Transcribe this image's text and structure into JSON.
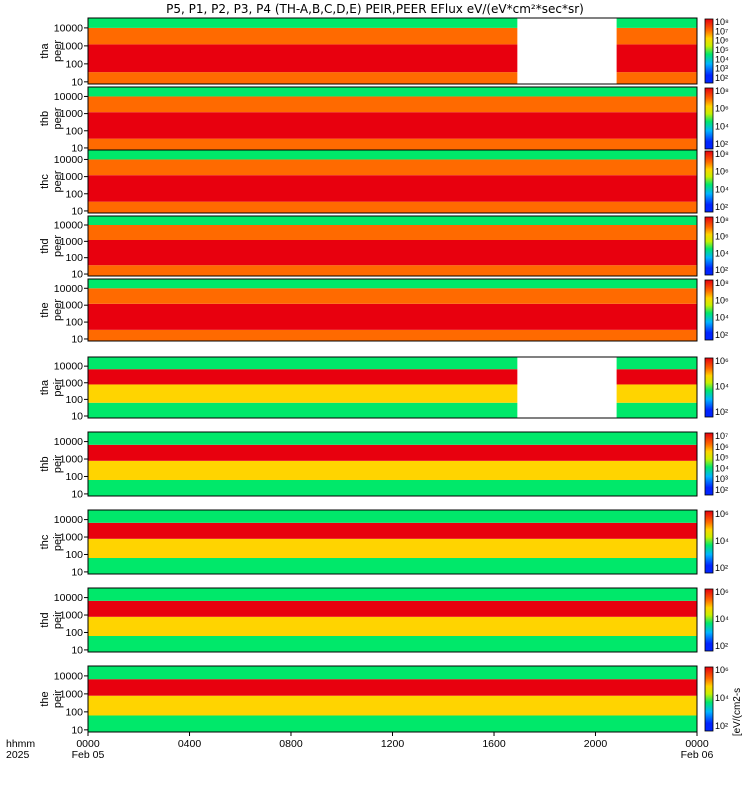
{
  "title": "P5, P1, P2, P3, P4 (TH-A,B,C,D,E) PEIR,PEER EFlux eV/(eV*cm²*sec*sr)",
  "time_axis": {
    "row_labels": [
      "hhmm",
      "2025"
    ],
    "ticks": [
      {
        "label": "0000",
        "sub": "Feb 05",
        "frac": 0.0
      },
      {
        "label": "0400",
        "sub": "",
        "frac": 0.1667
      },
      {
        "label": "0800",
        "sub": "",
        "frac": 0.3333
      },
      {
        "label": "1200",
        "sub": "",
        "frac": 0.5
      },
      {
        "label": "1600",
        "sub": "",
        "frac": 0.6667
      },
      {
        "label": "2000",
        "sub": "",
        "frac": 0.8333
      },
      {
        "label": "0000",
        "sub": "Feb 06",
        "frac": 1.0
      }
    ]
  },
  "colorbar_label": "[eV/(cm2-s",
  "chart_data": {
    "type": "heatmap",
    "x_range_hours": [
      0,
      24
    ],
    "y_axis_log": true,
    "y_ticks": [
      "10000",
      "1000",
      "100",
      "10"
    ],
    "y_tick_values": [
      10000,
      1000,
      100,
      10
    ],
    "panels": [
      {
        "probe": "tha",
        "species": "peer",
        "cbar_ticks": [
          "10⁸",
          "10⁷",
          "10⁶",
          "10⁵",
          "10⁴",
          "10³",
          "10²"
        ],
        "cbar_exp_max": 8,
        "cbar_exp_min": 2,
        "gap": [
          0.705,
          0.868
        ]
      },
      {
        "probe": "thb",
        "species": "peer",
        "cbar_ticks": [
          "10⁸",
          "10⁶",
          "10⁴",
          "10²"
        ],
        "cbar_exp_max": 8,
        "cbar_exp_min": 2
      },
      {
        "probe": "thc",
        "species": "peer",
        "cbar_ticks": [
          "10⁸",
          "10⁶",
          "10⁴",
          "10²"
        ],
        "cbar_exp_max": 8,
        "cbar_exp_min": 2
      },
      {
        "probe": "thd",
        "species": "peer",
        "cbar_ticks": [
          "10⁸",
          "10⁶",
          "10⁴",
          "10²"
        ],
        "cbar_exp_max": 8,
        "cbar_exp_min": 2
      },
      {
        "probe": "the",
        "species": "peer",
        "cbar_ticks": [
          "10⁸",
          "10⁶",
          "10⁴",
          "10²"
        ],
        "cbar_exp_max": 8,
        "cbar_exp_min": 2
      },
      {
        "probe": "tha",
        "species": "peir",
        "cbar_ticks": [
          "10⁶",
          "10⁴",
          "10²"
        ],
        "cbar_exp_max": 6,
        "cbar_exp_min": 2,
        "gap": [
          0.705,
          0.868
        ]
      },
      {
        "probe": "thb",
        "species": "peir",
        "cbar_ticks": [
          "10⁷",
          "10⁶",
          "10⁵",
          "10⁴",
          "10³",
          "10²"
        ],
        "cbar_exp_max": 7,
        "cbar_exp_min": 2
      },
      {
        "probe": "thc",
        "species": "peir",
        "cbar_ticks": [
          "10⁶",
          "10⁴",
          "10²"
        ],
        "cbar_exp_max": 6,
        "cbar_exp_min": 2
      },
      {
        "probe": "thd",
        "species": "peir",
        "cbar_ticks": [
          "10⁶",
          "10⁴",
          "10²"
        ],
        "cbar_exp_max": 6,
        "cbar_exp_min": 2
      },
      {
        "probe": "the",
        "species": "peir",
        "cbar_ticks": [
          "10⁶",
          "10⁴",
          "10²"
        ],
        "cbar_exp_max": 6,
        "cbar_exp_min": 2
      }
    ]
  }
}
